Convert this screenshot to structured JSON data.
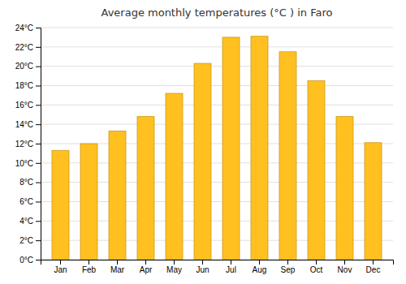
{
  "chart_data": {
    "type": "bar",
    "title": "Average monthly temperatures (°C ) in Faro",
    "categories": [
      "Jan",
      "Feb",
      "Mar",
      "Apr",
      "May",
      "Jun",
      "Jul",
      "Aug",
      "Sep",
      "Oct",
      "Nov",
      "Dec"
    ],
    "values": [
      11.3,
      12.0,
      13.3,
      14.8,
      17.2,
      20.3,
      23.0,
      23.1,
      21.5,
      18.5,
      14.8,
      12.1
    ],
    "color": "#FFC020",
    "ylim": [
      0,
      24
    ],
    "yticks": [
      {
        "value": 0,
        "label": "0°C"
      },
      {
        "value": 2,
        "label": "2°C"
      },
      {
        "value": 4,
        "label": "4°C"
      },
      {
        "value": 6,
        "label": "6°C"
      },
      {
        "value": 8,
        "label": "8°C"
      },
      {
        "value": 10,
        "label": "10°C"
      },
      {
        "value": 12,
        "label": "12°C"
      },
      {
        "value": 14,
        "label": "14°C"
      },
      {
        "value": 16,
        "label": "16°C"
      },
      {
        "value": 18,
        "label": "18°C"
      },
      {
        "value": 20,
        "label": "20°C"
      },
      {
        "value": 22,
        "label": "22°C"
      },
      {
        "value": 24,
        "label": "24°C"
      }
    ],
    "grid": true
  }
}
